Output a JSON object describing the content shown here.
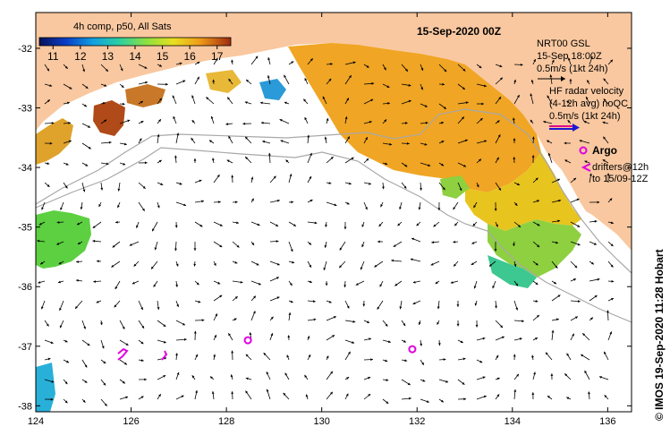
{
  "colorbar": {
    "title": "4h comp, p50, All Sats",
    "ticks": [
      "11",
      "12",
      "13",
      "14",
      "15",
      "16",
      "17"
    ],
    "range": [
      10.5,
      17.5
    ]
  },
  "map": {
    "date_title": "15-Sep-2020 00Z",
    "lon_ticks": [
      "124",
      "126",
      "128",
      "130",
      "132",
      "134",
      "136"
    ],
    "lat_ticks": [
      "-32",
      "-33",
      "-34",
      "-35",
      "-36",
      "-37",
      "-38"
    ],
    "lon_range": [
      124,
      136.5
    ],
    "lat_range": [
      -38.1,
      -31.4
    ],
    "land_color": "#f9c8a0"
  },
  "legend": {
    "nrt_lines": [
      "NRT00 GSL",
      "15-Sep 18:00Z",
      "0.5m/s (1kt 24h)"
    ],
    "hf_lines": [
      "HF radar velocity",
      "(4-12h avg) noQC",
      "0.5m/s (1kt 24h)"
    ],
    "argo_label": "Argo",
    "drifter_lines": [
      "drifters@12h",
      "to 15/09-12Z"
    ]
  },
  "credit": "© IMOS 19-Sep-2020 11:28 Hobart",
  "argo_floats": [
    {
      "lon": 128.45,
      "lat": -36.9
    },
    {
      "lon": 131.9,
      "lat": -37.05
    }
  ]
}
